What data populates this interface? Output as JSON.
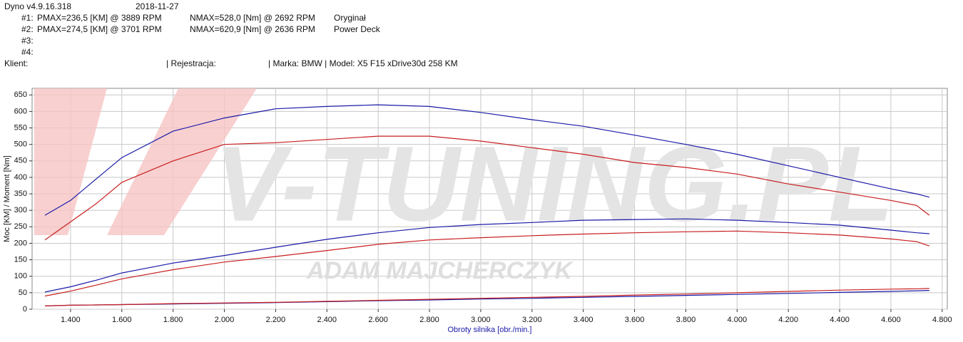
{
  "header": {
    "program": "Dyno v4.9.16.318",
    "date": "2018-11-27",
    "runs": [
      {
        "id": "#1:",
        "pmax": "PMAX=236,5 [KM] @ 3889 RPM",
        "nmax": "NMAX=528,0 [Nm] @ 2692 RPM",
        "name": "Oryginał"
      },
      {
        "id": "#2:",
        "pmax": "PMAX=274,5 [KM] @ 3701 RPM",
        "nmax": "NMAX=620,9 [Nm] @ 2636 RPM",
        "name": "Power Deck"
      },
      {
        "id": "#3:"
      },
      {
        "id": "#4:"
      }
    ],
    "client": "Klient:",
    "registration": "| Rejestracja:",
    "vehicle": "| Marka: BMW | Model: X5 F15 xDrive30d 258 KM"
  },
  "watermark": {
    "logo": "V-TUNING.PL",
    "author": "ADAM MAJCHERCZYK"
  },
  "chart_data": {
    "type": "line",
    "x_label": "Obroty silnika [obr./min.]",
    "y_label": "Moc [KM] / Moment [Nm]",
    "x": [
      1300,
      1400,
      1500,
      1600,
      1800,
      2000,
      2200,
      2400,
      2600,
      2800,
      3000,
      3200,
      3400,
      3600,
      3800,
      4000,
      4200,
      4400,
      4600,
      4700,
      4750
    ],
    "xlim": [
      1250,
      4820
    ],
    "ylim": [
      0,
      670
    ],
    "xticks": [
      {
        "value": 1400,
        "label": "1.400"
      },
      {
        "value": 1600,
        "label": "1.600"
      },
      {
        "value": 1800,
        "label": "1.800"
      },
      {
        "value": 2000,
        "label": "2.000"
      },
      {
        "value": 2200,
        "label": "2.200"
      },
      {
        "value": 2400,
        "label": "2.400"
      },
      {
        "value": 2600,
        "label": "2.600"
      },
      {
        "value": 2800,
        "label": "2.800"
      },
      {
        "value": 3000,
        "label": "3.000"
      },
      {
        "value": 3200,
        "label": "3.200"
      },
      {
        "value": 3400,
        "label": "3.400"
      },
      {
        "value": 3600,
        "label": "3.600"
      },
      {
        "value": 3800,
        "label": "3.800"
      },
      {
        "value": 4000,
        "label": "4.000"
      },
      {
        "value": 4200,
        "label": "4.200"
      },
      {
        "value": 4400,
        "label": "4.400"
      },
      {
        "value": 4600,
        "label": "4.600"
      },
      {
        "value": 4800,
        "label": "4.800"
      }
    ],
    "yticks": [
      0,
      50,
      100,
      150,
      200,
      250,
      300,
      350,
      400,
      450,
      500,
      550,
      600,
      650
    ],
    "grid": true,
    "series": [
      {
        "color": "#1a1aa8",
        "values": [
          285,
          330,
          395,
          460,
          540,
          580,
          608,
          615,
          620,
          615,
          597,
          575,
          555,
          528,
          500,
          470,
          435,
          400,
          365,
          350,
          340
        ]
      },
      {
        "color": "#c81e1e",
        "values": [
          210,
          265,
          320,
          385,
          450,
          500,
          505,
          515,
          525,
          525,
          510,
          490,
          470,
          445,
          430,
          410,
          380,
          355,
          330,
          315,
          285
        ]
      },
      {
        "color": "#1a1aa8",
        "values": [
          52,
          68,
          88,
          110,
          140,
          163,
          188,
          212,
          232,
          248,
          257,
          263,
          270,
          272,
          274,
          270,
          263,
          255,
          240,
          232,
          229
        ]
      },
      {
        "color": "#c81e1e",
        "values": [
          40,
          55,
          73,
          92,
          120,
          143,
          160,
          178,
          197,
          210,
          217,
          223,
          228,
          232,
          235,
          237,
          232,
          225,
          213,
          205,
          192
        ]
      },
      {
        "color": "#1a1aa8",
        "values": [
          10,
          12,
          13,
          14,
          16,
          18,
          20,
          23,
          26,
          28,
          31,
          33,
          36,
          39,
          42,
          45,
          48,
          51,
          54,
          56,
          57
        ]
      },
      {
        "color": "#c81e1e",
        "values": [
          10,
          12,
          13,
          14,
          17,
          19,
          21,
          24,
          27,
          30,
          33,
          36,
          39,
          43,
          46,
          50,
          54,
          58,
          61,
          62,
          63
        ]
      }
    ]
  }
}
